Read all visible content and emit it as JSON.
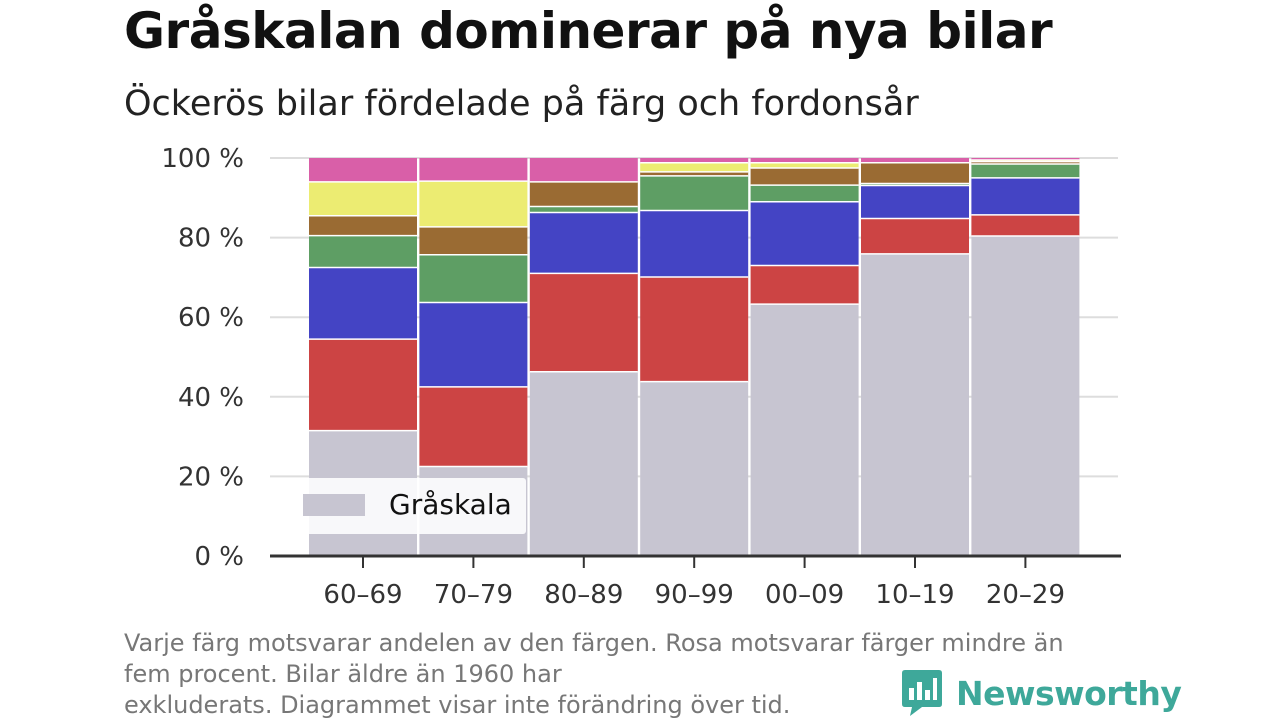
{
  "header": {
    "title": "Gråskalan dominerar på nya bilar",
    "subtitle": "Öckerös bilar fördelade på färg och fordonsår"
  },
  "chart_data": {
    "type": "bar",
    "stacked": true,
    "categories": [
      "60–69",
      "70–79",
      "80–89",
      "90–99",
      "00–09",
      "10–19",
      "20–29"
    ],
    "ylim": [
      0,
      100
    ],
    "yticks": [
      0,
      20,
      40,
      60,
      80,
      100
    ],
    "ytick_labels": [
      "0 %",
      "20 %",
      "40 %",
      "60 %",
      "80 %",
      "100 %"
    ],
    "grid": true,
    "legend_position": "bottom-left",
    "series": [
      {
        "name": "Gråskala",
        "color": "#c7c5d1",
        "values": [
          31.5,
          22.5,
          46.3,
          43.8,
          63.3,
          75.9,
          80.4
        ]
      },
      {
        "color": "#cc4444",
        "values": [
          23.0,
          20.0,
          24.7,
          26.3,
          9.7,
          8.9,
          5.3
        ]
      },
      {
        "color": "#4444c4",
        "values": [
          18.0,
          21.2,
          15.3,
          16.7,
          16.0,
          8.3,
          9.3
        ]
      },
      {
        "color": "#5e9e64",
        "values": [
          8.0,
          12.0,
          1.5,
          8.7,
          4.2,
          0.5,
          3.5
        ]
      },
      {
        "color": "#9a6b33",
        "values": [
          5.0,
          7.0,
          6.2,
          1.0,
          4.3,
          5.2,
          0.6
        ]
      },
      {
        "color": "#ecec72",
        "values": [
          8.5,
          11.5,
          0.0,
          2.3,
          1.3,
          0.0,
          0.4
        ]
      },
      {
        "color": "#d95fa8",
        "values": [
          6.0,
          5.8,
          6.0,
          1.2,
          1.2,
          1.2,
          0.5
        ]
      }
    ]
  },
  "legend": {
    "label": "Gråskala",
    "swatch_color": "#c7c5d1"
  },
  "footnote": {
    "line1": "Varje färg motsvarar andelen av den färgen. Rosa motsvarar färger mindre än",
    "line2": "fem procent. Bilar äldre än 1960 har",
    "line3": "exkluderats. Diagrammet visar inte förändring över tid."
  },
  "brand": {
    "name": "Newsworthy",
    "icon": "newsworthy-logo-icon",
    "color": "#3ea89a"
  }
}
